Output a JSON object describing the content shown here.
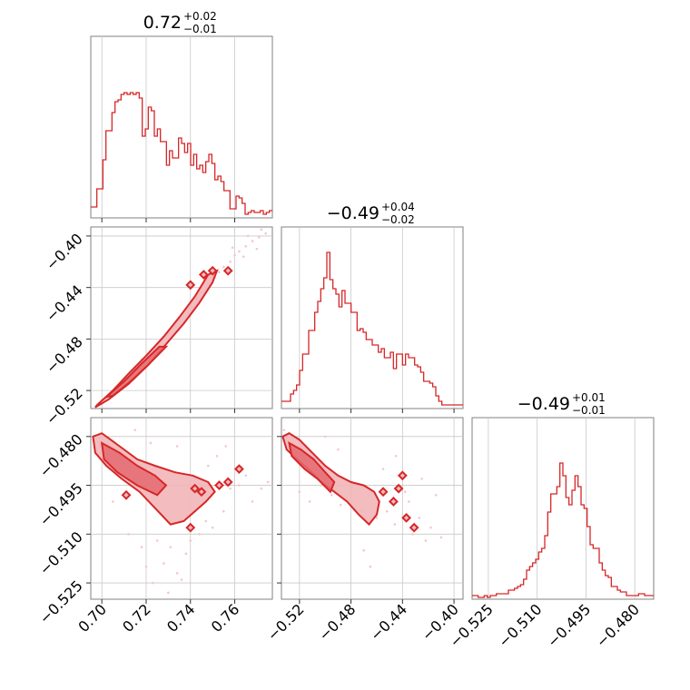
{
  "chart_data": {
    "type": "corner",
    "color": "#d62728",
    "parameters": [
      {
        "title_value": "0.72",
        "title_plus": "+0.02",
        "title_minus": "−0.01",
        "range": [
          0.695,
          0.777
        ],
        "ticks": [
          0.7,
          0.72,
          0.74,
          0.76
        ],
        "tick_labels": [
          "0.70",
          "0.72",
          "0.74",
          "0.76"
        ],
        "hist": [
          0.06,
          0.06,
          0.16,
          0.16,
          0.32,
          0.48,
          0.48,
          0.58,
          0.64,
          0.65,
          0.68,
          0.69,
          0.68,
          0.69,
          0.68,
          0.69,
          0.66,
          0.45,
          0.49,
          0.61,
          0.59,
          0.45,
          0.49,
          0.42,
          0.42,
          0.29,
          0.37,
          0.33,
          0.33,
          0.44,
          0.41,
          0.36,
          0.41,
          0.29,
          0.35,
          0.27,
          0.29,
          0.25,
          0.31,
          0.35,
          0.3,
          0.21,
          0.23,
          0.2,
          0.15,
          0.15,
          0.05,
          0.05,
          0.12,
          0.11,
          0.08,
          0.02,
          0.03,
          0.04,
          0.03,
          0.03,
          0.04,
          0.02,
          0.03,
          0.04
        ]
      },
      {
        "title_value": "−0.49",
        "title_plus": "+0.04",
        "title_minus": "−0.02",
        "range": [
          -0.534,
          -0.393
        ],
        "ticks": [
          -0.52,
          -0.48,
          -0.44,
          -0.4
        ],
        "tick_labels": [
          "−0.52",
          "−0.48",
          "−0.44",
          "−0.40"
        ],
        "y_tick_labels": [
          "−0.52",
          "−0.48",
          "−0.44",
          "−0.40"
        ],
        "hist": [
          0.04,
          0.04,
          0.04,
          0.08,
          0.1,
          0.13,
          0.21,
          0.3,
          0.3,
          0.43,
          0.43,
          0.53,
          0.59,
          0.66,
          0.72,
          0.86,
          0.71,
          0.66,
          0.63,
          0.56,
          0.65,
          0.58,
          0.58,
          0.53,
          0.53,
          0.43,
          0.44,
          0.42,
          0.38,
          0.38,
          0.35,
          0.35,
          0.31,
          0.33,
          0.28,
          0.28,
          0.31,
          0.22,
          0.3,
          0.3,
          0.24,
          0.3,
          0.28,
          0.28,
          0.24,
          0.23,
          0.2,
          0.15,
          0.15,
          0.14,
          0.12,
          0.07,
          0.04,
          0.02,
          0.02,
          0.02,
          0.02,
          0.02,
          0.02,
          0.02
        ]
      },
      {
        "title_value": "−0.49",
        "title_plus": "+0.01",
        "title_minus": "−0.01",
        "range": [
          -0.53,
          -0.4742
        ],
        "ticks": [
          -0.525,
          -0.51,
          -0.495,
          -0.48
        ],
        "tick_labels": [
          "−0.525",
          "−0.510",
          "−0.495",
          "−0.480"
        ],
        "y_tick_labels": [
          "−0.525",
          "−0.510",
          "−0.495",
          "−0.480"
        ],
        "hist": [
          0.02,
          0.02,
          0.01,
          0.01,
          0.02,
          0.01,
          0.02,
          0.02,
          0.03,
          0.03,
          0.03,
          0.03,
          0.05,
          0.05,
          0.06,
          0.07,
          0.08,
          0.11,
          0.16,
          0.18,
          0.2,
          0.22,
          0.26,
          0.28,
          0.35,
          0.48,
          0.58,
          0.58,
          0.62,
          0.75,
          0.68,
          0.56,
          0.52,
          0.6,
          0.68,
          0.62,
          0.52,
          0.5,
          0.4,
          0.3,
          0.28,
          0.28,
          0.2,
          0.16,
          0.13,
          0.12,
          0.07,
          0.07,
          0.05,
          0.04,
          0.04,
          0.02,
          0.02,
          0.02,
          0.02,
          0.03,
          0.03,
          0.02,
          0.02,
          0.02
        ]
      }
    ],
    "pairs": [
      {
        "xi": 0,
        "yi": 1,
        "outer": [
          [
            0.698,
            -0.531
          ],
          [
            0.705,
            -0.52
          ],
          [
            0.712,
            -0.507
          ],
          [
            0.72,
            -0.493
          ],
          [
            0.728,
            -0.478
          ],
          [
            0.735,
            -0.463
          ],
          [
            0.742,
            -0.447
          ],
          [
            0.748,
            -0.43
          ],
          [
            0.752,
            -0.427
          ],
          [
            0.75,
            -0.436
          ],
          [
            0.744,
            -0.452
          ],
          [
            0.737,
            -0.468
          ],
          [
            0.729,
            -0.484
          ],
          [
            0.721,
            -0.5
          ],
          [
            0.712,
            -0.515
          ],
          [
            0.703,
            -0.527
          ],
          [
            0.697,
            -0.533
          ]
        ],
        "inner": [
          [
            0.702,
            -0.525
          ],
          [
            0.71,
            -0.513
          ],
          [
            0.718,
            -0.499
          ],
          [
            0.726,
            -0.486
          ],
          [
            0.729,
            -0.486
          ],
          [
            0.721,
            -0.5
          ],
          [
            0.713,
            -0.513
          ],
          [
            0.705,
            -0.524
          ]
        ],
        "islands": [
          [
            0.746,
            -0.43
          ],
          [
            0.75,
            -0.427
          ],
          [
            0.757,
            -0.427
          ],
          [
            0.74,
            -0.438
          ]
        ],
        "points": [
          [
            0.7,
            -0.53
          ],
          [
            0.702,
            -0.526
          ],
          [
            0.707,
            -0.518
          ],
          [
            0.711,
            -0.51
          ],
          [
            0.716,
            -0.503
          ],
          [
            0.718,
            -0.496
          ],
          [
            0.722,
            -0.49
          ],
          [
            0.724,
            -0.486
          ],
          [
            0.727,
            -0.481
          ],
          [
            0.73,
            -0.476
          ],
          [
            0.733,
            -0.47
          ],
          [
            0.735,
            -0.466
          ],
          [
            0.739,
            -0.46
          ],
          [
            0.741,
            -0.455
          ],
          [
            0.743,
            -0.449
          ],
          [
            0.745,
            -0.444
          ],
          [
            0.748,
            -0.438
          ],
          [
            0.751,
            -0.432
          ],
          [
            0.753,
            -0.428
          ],
          [
            0.755,
            -0.424
          ],
          [
            0.758,
            -0.42
          ],
          [
            0.76,
            -0.415
          ],
          [
            0.762,
            -0.412
          ],
          [
            0.765,
            -0.408
          ],
          [
            0.768,
            -0.404
          ],
          [
            0.771,
            -0.401
          ],
          [
            0.774,
            -0.398
          ],
          [
            0.759,
            -0.409
          ],
          [
            0.764,
            -0.416
          ],
          [
            0.766,
            -0.4
          ],
          [
            0.77,
            -0.41
          ],
          [
            0.772,
            -0.395
          ]
        ]
      },
      {
        "xi": 0,
        "yi": 2,
        "outer": [
          [
            0.696,
            -0.48
          ],
          [
            0.7,
            -0.479
          ],
          [
            0.708,
            -0.483
          ],
          [
            0.716,
            -0.487
          ],
          [
            0.724,
            -0.489
          ],
          [
            0.733,
            -0.491
          ],
          [
            0.741,
            -0.492
          ],
          [
            0.748,
            -0.494
          ],
          [
            0.751,
            -0.497
          ],
          [
            0.747,
            -0.5
          ],
          [
            0.742,
            -0.503
          ],
          [
            0.737,
            -0.506
          ],
          [
            0.731,
            -0.507
          ],
          [
            0.724,
            -0.502
          ],
          [
            0.717,
            -0.497
          ],
          [
            0.709,
            -0.493
          ],
          [
            0.702,
            -0.489
          ],
          [
            0.697,
            -0.485
          ]
        ],
        "inner": [
          [
            0.7,
            -0.482
          ],
          [
            0.708,
            -0.485
          ],
          [
            0.716,
            -0.489
          ],
          [
            0.724,
            -0.492
          ],
          [
            0.729,
            -0.495
          ],
          [
            0.725,
            -0.498
          ],
          [
            0.716,
            -0.495
          ],
          [
            0.707,
            -0.491
          ],
          [
            0.701,
            -0.487
          ]
        ],
        "islands": [
          [
            0.745,
            -0.497
          ],
          [
            0.753,
            -0.495
          ],
          [
            0.757,
            -0.494
          ],
          [
            0.762,
            -0.49
          ],
          [
            0.74,
            -0.508
          ],
          [
            0.711,
            -0.498
          ],
          [
            0.742,
            -0.496
          ]
        ],
        "points": [
          [
            0.705,
            -0.5
          ],
          [
            0.712,
            -0.51
          ],
          [
            0.718,
            -0.514
          ],
          [
            0.72,
            -0.52
          ],
          [
            0.725,
            -0.512
          ],
          [
            0.728,
            -0.519
          ],
          [
            0.731,
            -0.514
          ],
          [
            0.734,
            -0.522
          ],
          [
            0.738,
            -0.516
          ],
          [
            0.74,
            -0.512
          ],
          [
            0.744,
            -0.51
          ],
          [
            0.747,
            -0.506
          ],
          [
            0.75,
            -0.508
          ],
          [
            0.755,
            -0.503
          ],
          [
            0.758,
            -0.496
          ],
          [
            0.762,
            -0.495
          ],
          [
            0.765,
            -0.492
          ],
          [
            0.768,
            -0.5
          ],
          [
            0.772,
            -0.496
          ],
          [
            0.775,
            -0.494
          ],
          [
            0.723,
            -0.525
          ],
          [
            0.73,
            -0.528
          ],
          [
            0.736,
            -0.524
          ],
          [
            0.742,
            -0.503
          ],
          [
            0.748,
            -0.489
          ],
          [
            0.752,
            -0.486
          ],
          [
            0.756,
            -0.483
          ],
          [
            0.715,
            -0.478
          ],
          [
            0.722,
            -0.482
          ],
          [
            0.734,
            -0.483
          ]
        ]
      },
      {
        "xi": 1,
        "yi": 2,
        "outer": [
          [
            -0.533,
            -0.48
          ],
          [
            -0.528,
            -0.479
          ],
          [
            -0.52,
            -0.481
          ],
          [
            -0.51,
            -0.485
          ],
          [
            -0.5,
            -0.489
          ],
          [
            -0.49,
            -0.492
          ],
          [
            -0.48,
            -0.494
          ],
          [
            -0.47,
            -0.495
          ],
          [
            -0.462,
            -0.497
          ],
          [
            -0.458,
            -0.5
          ],
          [
            -0.46,
            -0.504
          ],
          [
            -0.466,
            -0.507
          ],
          [
            -0.474,
            -0.504
          ],
          [
            -0.483,
            -0.5
          ],
          [
            -0.493,
            -0.497
          ],
          [
            -0.503,
            -0.494
          ],
          [
            -0.513,
            -0.49
          ],
          [
            -0.522,
            -0.487
          ],
          [
            -0.53,
            -0.484
          ]
        ],
        "inner": [
          [
            -0.528,
            -0.482
          ],
          [
            -0.519,
            -0.484
          ],
          [
            -0.509,
            -0.487
          ],
          [
            -0.5,
            -0.491
          ],
          [
            -0.493,
            -0.494
          ],
          [
            -0.496,
            -0.497
          ],
          [
            -0.506,
            -0.493
          ],
          [
            -0.516,
            -0.49
          ],
          [
            -0.526,
            -0.486
          ]
        ],
        "islands": [
          [
            -0.443,
            -0.496
          ],
          [
            -0.44,
            -0.492
          ],
          [
            -0.437,
            -0.505
          ],
          [
            -0.431,
            -0.508
          ],
          [
            -0.455,
            -0.497
          ],
          [
            -0.447,
            -0.5
          ]
        ],
        "points": [
          [
            -0.532,
            -0.478
          ],
          [
            -0.525,
            -0.482
          ],
          [
            -0.518,
            -0.483
          ],
          [
            -0.51,
            -0.49
          ],
          [
            -0.503,
            -0.495
          ],
          [
            -0.495,
            -0.498
          ],
          [
            -0.488,
            -0.501
          ],
          [
            -0.48,
            -0.499
          ],
          [
            -0.472,
            -0.503
          ],
          [
            -0.466,
            -0.498
          ],
          [
            -0.46,
            -0.505
          ],
          [
            -0.452,
            -0.503
          ],
          [
            -0.446,
            -0.507
          ],
          [
            -0.438,
            -0.497
          ],
          [
            -0.432,
            -0.51
          ],
          [
            -0.427,
            -0.505
          ],
          [
            -0.422,
            -0.512
          ],
          [
            -0.418,
            -0.508
          ],
          [
            -0.414,
            -0.498
          ],
          [
            -0.41,
            -0.511
          ],
          [
            -0.47,
            -0.515
          ],
          [
            -0.465,
            -0.52
          ],
          [
            -0.455,
            -0.49
          ],
          [
            -0.445,
            -0.486
          ],
          [
            -0.435,
            -0.5
          ],
          [
            -0.425,
            -0.493
          ],
          [
            -0.5,
            -0.48
          ],
          [
            -0.49,
            -0.484
          ],
          [
            -0.512,
            -0.5
          ],
          [
            -0.52,
            -0.497
          ]
        ]
      }
    ]
  }
}
